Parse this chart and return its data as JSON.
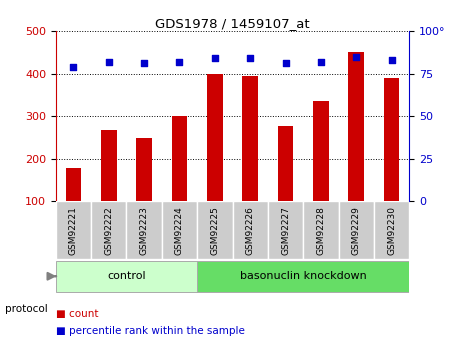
{
  "title": "GDS1978 / 1459107_at",
  "samples": [
    "GSM92221",
    "GSM92222",
    "GSM92223",
    "GSM92224",
    "GSM92225",
    "GSM92226",
    "GSM92227",
    "GSM92228",
    "GSM92229",
    "GSM92230"
  ],
  "counts": [
    178,
    267,
    248,
    300,
    400,
    395,
    277,
    335,
    450,
    390
  ],
  "percentiles": [
    79,
    82,
    81,
    82,
    84,
    84,
    81,
    82,
    85,
    83
  ],
  "left_ylim": [
    100,
    500
  ],
  "right_ylim": [
    0,
    100
  ],
  "left_yticks": [
    100,
    200,
    300,
    400,
    500
  ],
  "right_yticks": [
    0,
    25,
    50,
    75,
    100
  ],
  "right_yticklabels": [
    "0",
    "25",
    "50",
    "75",
    "100°"
  ],
  "bar_color": "#cc0000",
  "dot_color": "#0000cc",
  "grid_color": "#000000",
  "control_indices": [
    0,
    1,
    2,
    3
  ],
  "knockdown_indices": [
    4,
    5,
    6,
    7,
    8,
    9
  ],
  "control_label": "control",
  "knockdown_label": "basonuclin knockdown",
  "control_bg": "#ccffcc",
  "knockdown_bg": "#66dd66",
  "protocol_label": "protocol",
  "legend_count": "count",
  "legend_pct": "percentile rank within the sample",
  "tick_box_color": "#cccccc",
  "tick_box_edge": "#999999",
  "xlabel_color": "#cc0000",
  "ylabel_right_color": "#0000cc",
  "title_color": "#000000",
  "figsize": [
    4.65,
    3.45
  ],
  "dpi": 100
}
